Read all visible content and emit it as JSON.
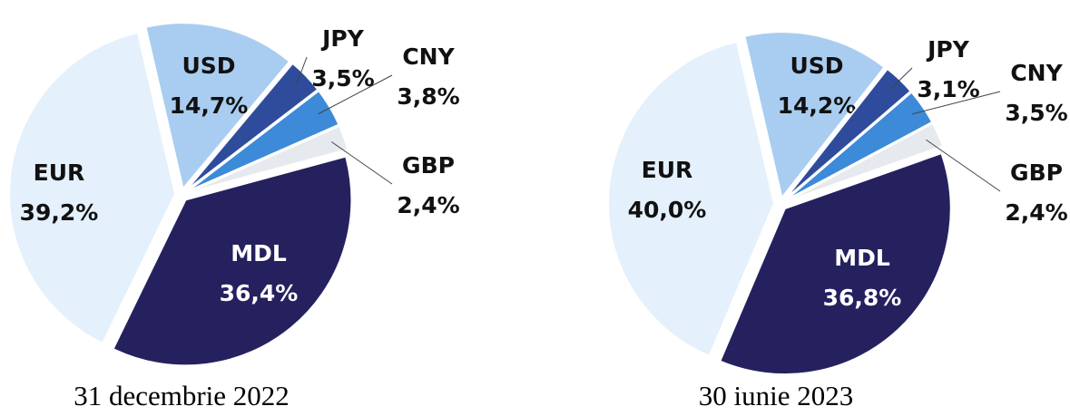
{
  "chart_data": [
    {
      "type": "pie",
      "title": "31 decembrie 2022",
      "categories": [
        "USD",
        "JPY",
        "CNY",
        "GBP",
        "MDL",
        "EUR"
      ],
      "values": [
        14.7,
        3.5,
        3.8,
        2.4,
        36.4,
        39.2
      ],
      "value_labels": [
        "14,7%",
        "3,5%",
        "3,8%",
        "2,4%",
        "36,4%",
        "39,2%"
      ],
      "colors": [
        "#a9cdf0",
        "#2f4c9c",
        "#3c8ad8",
        "#e6eaee",
        "#25215f",
        "#e4f0fb"
      ]
    },
    {
      "type": "pie",
      "title": "30 iunie 2023",
      "categories": [
        "USD",
        "JPY",
        "CNY",
        "GBP",
        "MDL",
        "EUR"
      ],
      "values": [
        14.2,
        3.1,
        3.5,
        2.4,
        36.8,
        40.0
      ],
      "value_labels": [
        "14,2%",
        "3,1%",
        "3,5%",
        "2,4%",
        "36,8%",
        "40,0%"
      ],
      "colors": [
        "#a9cdf0",
        "#2f4c9c",
        "#3c8ad8",
        "#e6eaee",
        "#25215f",
        "#e4f0fb"
      ]
    }
  ]
}
